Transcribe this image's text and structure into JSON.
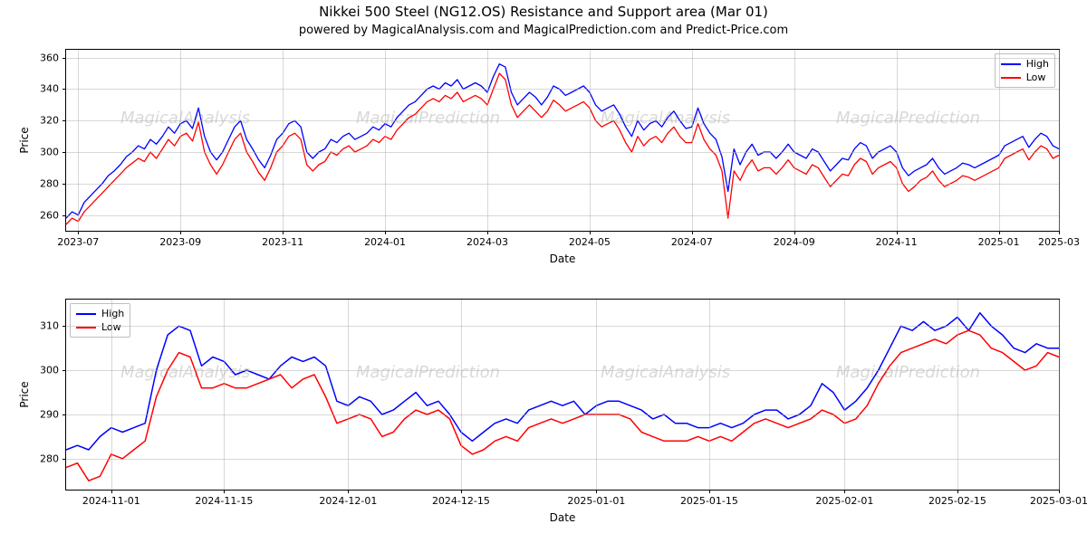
{
  "title": "Nikkei 500 Steel (NG12.OS) Resistance and Support area (Mar 01)",
  "subtitle": "powered by MagicalAnalysis.com and MagicalPrediction.com and Predict-Price.com",
  "watermarks": [
    "MagicalAnalysis",
    "MagicalPrediction"
  ],
  "legend": {
    "high": "High",
    "low": "Low"
  },
  "colors": {
    "high": "#0000ff",
    "low": "#ff0000",
    "grid": "#b0b0b0",
    "border": "#000000",
    "background": "#ffffff",
    "watermark": "#d9d9d9"
  },
  "typography": {
    "title_fontsize": 15,
    "subtitle_fontsize": 13,
    "label_fontsize": 12,
    "tick_fontsize": 11,
    "legend_fontsize": 11,
    "font_family": "DejaVu Sans"
  },
  "top_chart": {
    "type": "line",
    "ylabel": "Price",
    "xlabel": "Date",
    "ylim": [
      250,
      365
    ],
    "yticks": [
      260,
      280,
      300,
      320,
      340,
      360
    ],
    "xlim_idx": [
      0,
      165
    ],
    "xticks": [
      {
        "idx": 2,
        "label": "2023-07"
      },
      {
        "idx": 19,
        "label": "2023-09"
      },
      {
        "idx": 36,
        "label": "2023-11"
      },
      {
        "idx": 53,
        "label": "2024-01"
      },
      {
        "idx": 70,
        "label": "2024-03"
      },
      {
        "idx": 87,
        "label": "2024-05"
      },
      {
        "idx": 104,
        "label": "2024-07"
      },
      {
        "idx": 121,
        "label": "2024-09"
      },
      {
        "idx": 138,
        "label": "2024-11"
      },
      {
        "idx": 155,
        "label": "2025-01"
      },
      {
        "idx": 165,
        "label": "2025-03"
      }
    ],
    "legend_pos": "top-right",
    "line_width": 1.3,
    "series": {
      "high": [
        258,
        262,
        260,
        268,
        272,
        276,
        280,
        285,
        288,
        292,
        297,
        300,
        304,
        302,
        308,
        305,
        310,
        316,
        312,
        318,
        320,
        315,
        328,
        310,
        300,
        295,
        300,
        308,
        316,
        320,
        308,
        302,
        295,
        290,
        298,
        308,
        312,
        318,
        320,
        316,
        300,
        296,
        300,
        302,
        308,
        306,
        310,
        312,
        308,
        310,
        312,
        316,
        314,
        318,
        316,
        322,
        326,
        330,
        332,
        336,
        340,
        342,
        340,
        344,
        342,
        346,
        340,
        342,
        344,
        342,
        338,
        348,
        356,
        354,
        338,
        330,
        334,
        338,
        335,
        330,
        335,
        342,
        340,
        336,
        338,
        340,
        342,
        338,
        330,
        326,
        328,
        330,
        324,
        316,
        310,
        320,
        314,
        318,
        320,
        316,
        322,
        326,
        320,
        315,
        316,
        328,
        318,
        312,
        308,
        297,
        275,
        302,
        292,
        300,
        305,
        298,
        300,
        300,
        296,
        300,
        305,
        300,
        298,
        296,
        302,
        300,
        294,
        288,
        292,
        296,
        295,
        302,
        306,
        304,
        296,
        300,
        302,
        304,
        300,
        290,
        285,
        288,
        290,
        292,
        296,
        290,
        286,
        288,
        290,
        293,
        292,
        290,
        292,
        294,
        296,
        298,
        304,
        306,
        308,
        310,
        303,
        308,
        312,
        310,
        304,
        302
      ],
      "low": [
        254,
        258,
        256,
        262,
        266,
        270,
        274,
        278,
        282,
        286,
        290,
        293,
        296,
        294,
        300,
        296,
        302,
        308,
        304,
        310,
        312,
        307,
        319,
        300,
        292,
        286,
        292,
        300,
        308,
        312,
        300,
        294,
        287,
        282,
        290,
        300,
        304,
        310,
        312,
        308,
        292,
        288,
        292,
        294,
        300,
        298,
        302,
        304,
        300,
        302,
        304,
        308,
        306,
        310,
        308,
        314,
        318,
        322,
        324,
        328,
        332,
        334,
        332,
        336,
        334,
        338,
        332,
        334,
        336,
        334,
        330,
        340,
        350,
        346,
        330,
        322,
        326,
        330,
        326,
        322,
        326,
        333,
        330,
        326,
        328,
        330,
        332,
        328,
        320,
        316,
        318,
        320,
        314,
        306,
        300,
        310,
        304,
        308,
        310,
        306,
        312,
        316,
        310,
        306,
        306,
        318,
        308,
        302,
        298,
        288,
        258,
        288,
        282,
        290,
        295,
        288,
        290,
        290,
        286,
        290,
        295,
        290,
        288,
        286,
        292,
        290,
        284,
        278,
        282,
        286,
        285,
        292,
        296,
        294,
        286,
        290,
        292,
        294,
        290,
        280,
        275,
        278,
        282,
        284,
        288,
        282,
        278,
        280,
        282,
        285,
        284,
        282,
        284,
        286,
        288,
        290,
        296,
        298,
        300,
        302,
        295,
        300,
        304,
        302,
        296,
        298
      ]
    }
  },
  "bottom_chart": {
    "type": "line",
    "ylabel": "Price",
    "xlabel": "Date",
    "ylim": [
      273,
      316
    ],
    "yticks": [
      280,
      290,
      300,
      310
    ],
    "xlim_idx": [
      0,
      88
    ],
    "xticks": [
      {
        "idx": 4,
        "label": "2024-11-01"
      },
      {
        "idx": 14,
        "label": "2024-11-15"
      },
      {
        "idx": 25,
        "label": "2024-12-01"
      },
      {
        "idx": 35,
        "label": "2024-12-15"
      },
      {
        "idx": 47,
        "label": "2025-01-01"
      },
      {
        "idx": 57,
        "label": "2025-01-15"
      },
      {
        "idx": 69,
        "label": "2025-02-01"
      },
      {
        "idx": 79,
        "label": "2025-02-15"
      },
      {
        "idx": 88,
        "label": "2025-03-01"
      }
    ],
    "legend_pos": "top-left",
    "line_width": 1.5,
    "series": {
      "high": [
        282,
        283,
        282,
        285,
        287,
        286,
        287,
        288,
        300,
        308,
        310,
        309,
        301,
        303,
        302,
        299,
        300,
        299,
        298,
        301,
        303,
        302,
        303,
        301,
        293,
        292,
        294,
        293,
        290,
        291,
        293,
        295,
        292,
        293,
        290,
        286,
        284,
        286,
        288,
        289,
        288,
        291,
        292,
        293,
        292,
        293,
        290,
        292,
        293,
        293,
        292,
        291,
        289,
        290,
        288,
        288,
        287,
        287,
        288,
        287,
        288,
        290,
        291,
        291,
        289,
        290,
        292,
        297,
        295,
        291,
        293,
        296,
        300,
        305,
        310,
        309,
        311,
        309,
        310,
        312,
        309,
        313,
        310,
        308,
        305,
        304,
        306,
        305,
        305
      ],
      "low": [
        278,
        279,
        275,
        276,
        281,
        280,
        282,
        284,
        294,
        300,
        304,
        303,
        296,
        296,
        297,
        296,
        296,
        297,
        298,
        299,
        296,
        298,
        299,
        294,
        288,
        289,
        290,
        289,
        285,
        286,
        289,
        291,
        290,
        291,
        289,
        283,
        281,
        282,
        284,
        285,
        284,
        287,
        288,
        289,
        288,
        289,
        290,
        290,
        290,
        290,
        289,
        286,
        285,
        284,
        284,
        284,
        285,
        284,
        285,
        284,
        286,
        288,
        289,
        288,
        287,
        288,
        289,
        291,
        290,
        288,
        289,
        292,
        297,
        301,
        304,
        305,
        306,
        307,
        306,
        308,
        309,
        308,
        305,
        304,
        302,
        300,
        301,
        304,
        303
      ]
    }
  }
}
